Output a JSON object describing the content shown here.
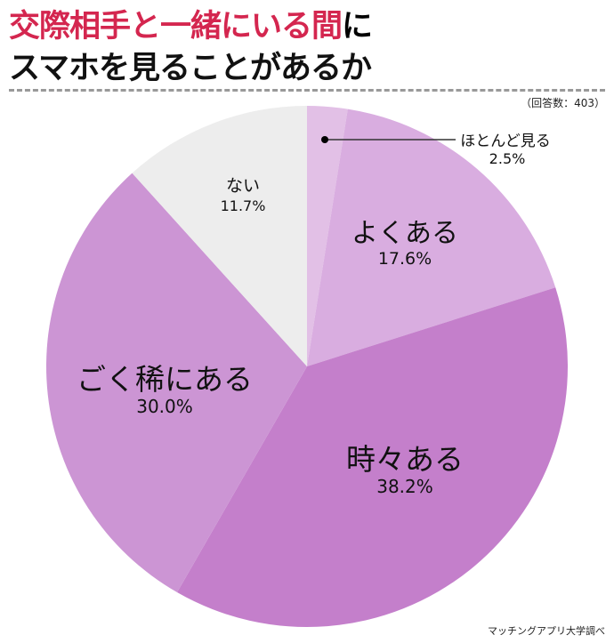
{
  "title": {
    "line1_highlight": "交際相手と一緒にいる間",
    "line1_rest": "に",
    "line2": "スマホを見ることがあるか"
  },
  "respondents": "（回答数：403）",
  "source": "マッチングアプリ大学調べ",
  "chart_data": {
    "type": "pie",
    "start": "top, clockwise",
    "slices": [
      {
        "label": "ほとんど見る",
        "value": 2.5,
        "value_label": "2.5%",
        "color": "#e2c0e6"
      },
      {
        "label": "よくある",
        "value": 17.6,
        "value_label": "17.6%",
        "color": "#d9ade0"
      },
      {
        "label": "時々ある",
        "value": 38.2,
        "value_label": "38.2%",
        "color": "#c47fcb"
      },
      {
        "label": "ごく稀にある",
        "value": 30.0,
        "value_label": "30.0%",
        "color": "#cc95d4"
      },
      {
        "label": "ない",
        "value": 11.7,
        "value_label": "11.7%",
        "color": "#ededed"
      }
    ]
  }
}
